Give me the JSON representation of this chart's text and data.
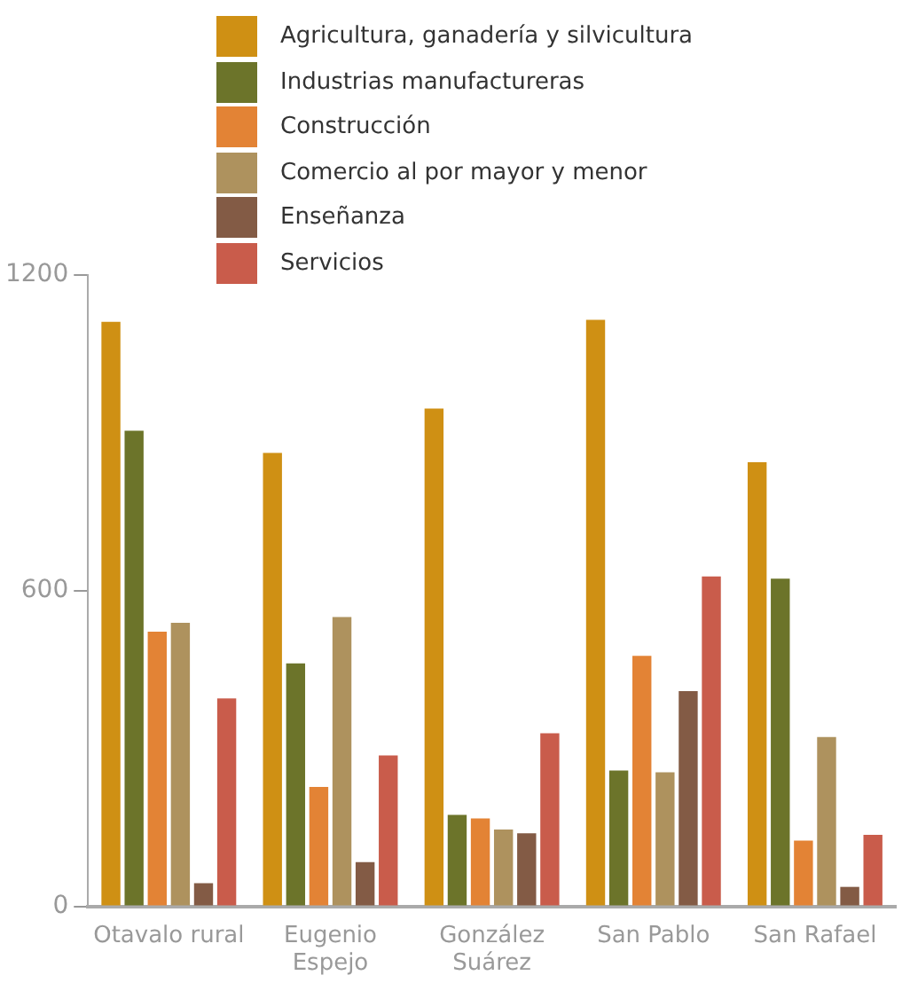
{
  "chart_data": {
    "type": "bar",
    "categories": [
      "Otavalo rural",
      "Eugenio Espejo",
      "González Suárez",
      "San Pablo",
      "San Rafael"
    ],
    "series": [
      {
        "name": "Agricultura, ganadería y silvicultura",
        "color": "#cf9014",
        "values": [
          1111,
          862,
          946,
          1115,
          844
        ]
      },
      {
        "name": "Industrias manufactureras",
        "color": "#6c742a",
        "values": [
          904,
          462,
          174,
          258,
          623
        ]
      },
      {
        "name": "Construcción",
        "color": "#e38335",
        "values": [
          522,
          227,
          167,
          476,
          125
        ]
      },
      {
        "name": "Comercio al por mayor y menor",
        "color": "#ae925e",
        "values": [
          539,
          550,
          146,
          255,
          322
        ]
      },
      {
        "name": "Enseñanza",
        "color": "#835b45",
        "values": [
          44,
          84,
          139,
          409,
          37
        ]
      },
      {
        "name": "Servicios",
        "color": "#c95c4b",
        "values": [
          395,
          287,
          329,
          627,
          136
        ]
      }
    ],
    "ylim": [
      0,
      1200
    ],
    "yticks": [
      0,
      600,
      1200
    ],
    "grid": false,
    "legend": "top"
  }
}
